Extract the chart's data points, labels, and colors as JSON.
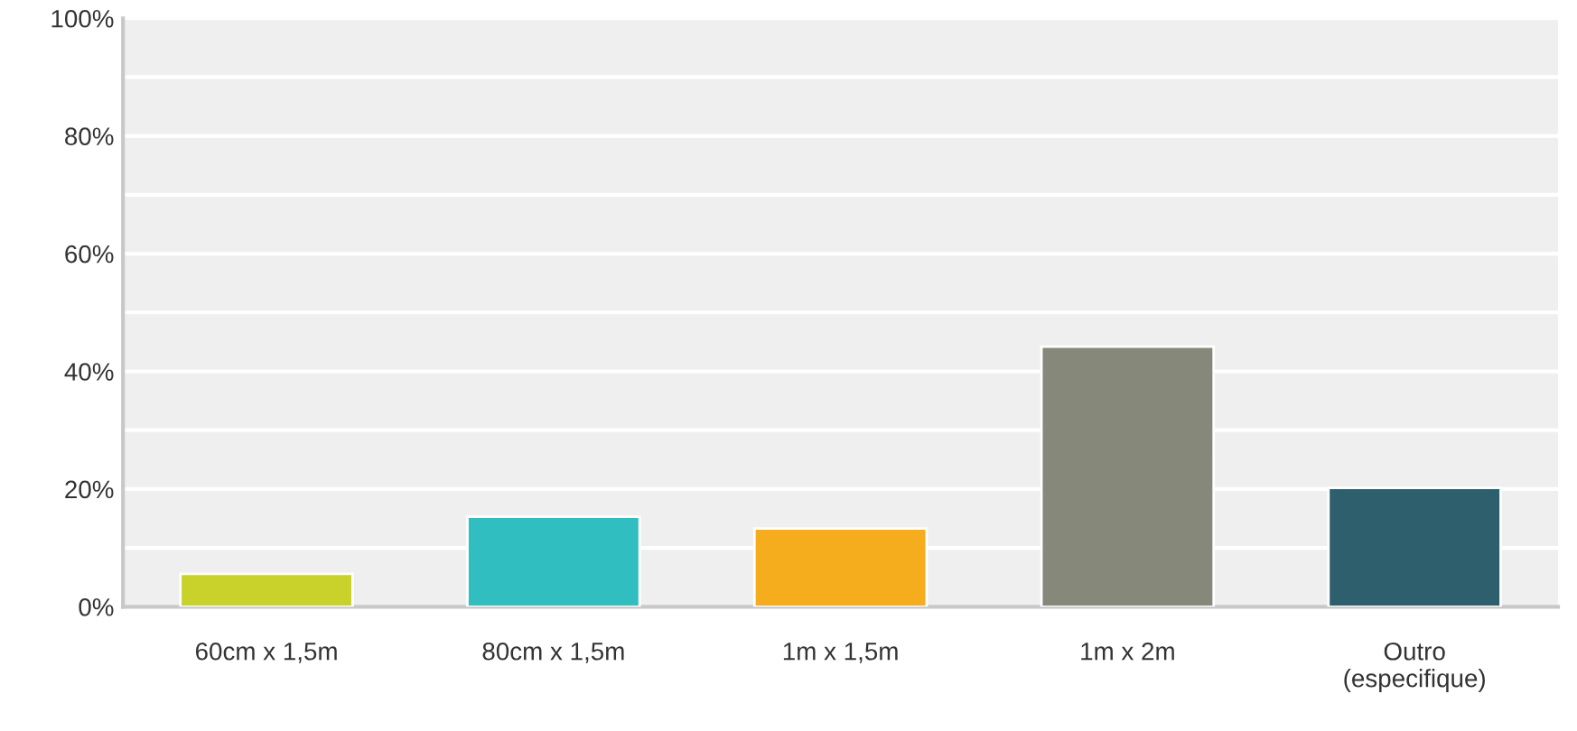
{
  "chart_data": {
    "type": "bar",
    "categories": [
      "60cm x 1,5m",
      "80cm x 1,5m",
      "1m x 1,5m",
      "1m x 2m",
      "Outro\n(especifique)"
    ],
    "values": [
      5.6,
      15.3,
      13.3,
      44.2,
      20.2
    ],
    "colors": [
      "#c9d22b",
      "#31bec0",
      "#f5ac1d",
      "#86887a",
      "#2d5f6d"
    ],
    "ylim": [
      0,
      100
    ],
    "yticks": [
      {
        "value": 0,
        "label": "0%"
      },
      {
        "value": 10,
        "label": null
      },
      {
        "value": 20,
        "label": "20%"
      },
      {
        "value": 30,
        "label": null
      },
      {
        "value": 40,
        "label": "40%"
      },
      {
        "value": 50,
        "label": null
      },
      {
        "value": 60,
        "label": "60%"
      },
      {
        "value": 70,
        "label": null
      },
      {
        "value": 80,
        "label": "80%"
      },
      {
        "value": 90,
        "label": null
      },
      {
        "value": 100,
        "label": "100%"
      }
    ],
    "grid": "y"
  }
}
